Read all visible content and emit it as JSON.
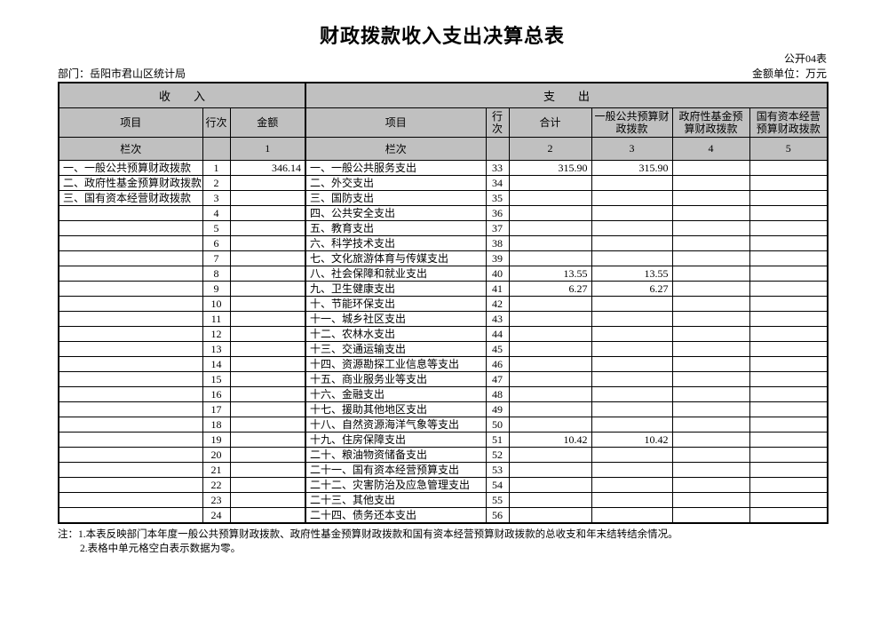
{
  "page": {
    "title": "财政拨款收入支出决算总表",
    "table_code": "公开04表",
    "department": "部门：岳阳市君山区统计局",
    "unit": "金额单位：万元"
  },
  "table": {
    "sections": {
      "income": "收　　入",
      "expense": "支　　出"
    },
    "columns": [
      "项目",
      "行次",
      "金额",
      "项目",
      "行次",
      "合计",
      "一般公共预算财政拨款",
      "政府性基金预算财政拨款",
      "国有资本经营预算财政拨款"
    ],
    "lanci": [
      "栏次",
      "",
      "1",
      "栏次",
      "",
      "2",
      "3",
      "4",
      "5"
    ],
    "rows": [
      [
        "一、一般公共预算财政拨款",
        "1",
        "346.14",
        "一、一般公共服务支出",
        "33",
        "315.90",
        "315.90",
        "",
        ""
      ],
      [
        "二、政府性基金预算财政拨款",
        "2",
        "",
        "二、外交支出",
        "34",
        "",
        "",
        "",
        ""
      ],
      [
        "三、国有资本经营财政拨款",
        "3",
        "",
        "三、国防支出",
        "35",
        "",
        "",
        "",
        ""
      ],
      [
        "",
        "4",
        "",
        "四、公共安全支出",
        "36",
        "",
        "",
        "",
        ""
      ],
      [
        "",
        "5",
        "",
        "五、教育支出",
        "37",
        "",
        "",
        "",
        ""
      ],
      [
        "",
        "6",
        "",
        "六、科学技术支出",
        "38",
        "",
        "",
        "",
        ""
      ],
      [
        "",
        "7",
        "",
        "七、文化旅游体育与传媒支出",
        "39",
        "",
        "",
        "",
        ""
      ],
      [
        "",
        "8",
        "",
        "八、社会保障和就业支出",
        "40",
        "13.55",
        "13.55",
        "",
        ""
      ],
      [
        "",
        "9",
        "",
        "九、卫生健康支出",
        "41",
        "6.27",
        "6.27",
        "",
        ""
      ],
      [
        "",
        "10",
        "",
        "十、节能环保支出",
        "42",
        "",
        "",
        "",
        ""
      ],
      [
        "",
        "11",
        "",
        "十一、城乡社区支出",
        "43",
        "",
        "",
        "",
        ""
      ],
      [
        "",
        "12",
        "",
        "十二、农林水支出",
        "44",
        "",
        "",
        "",
        ""
      ],
      [
        "",
        "13",
        "",
        "十三、交通运输支出",
        "45",
        "",
        "",
        "",
        ""
      ],
      [
        "",
        "14",
        "",
        "十四、资源勘探工业信息等支出",
        "46",
        "",
        "",
        "",
        ""
      ],
      [
        "",
        "15",
        "",
        "十五、商业服务业等支出",
        "47",
        "",
        "",
        "",
        ""
      ],
      [
        "",
        "16",
        "",
        "十六、金融支出",
        "48",
        "",
        "",
        "",
        ""
      ],
      [
        "",
        "17",
        "",
        "十七、援助其他地区支出",
        "49",
        "",
        "",
        "",
        ""
      ],
      [
        "",
        "18",
        "",
        "十八、自然资源海洋气象等支出",
        "50",
        "",
        "",
        "",
        ""
      ],
      [
        "",
        "19",
        "",
        "十九、住房保障支出",
        "51",
        "10.42",
        "10.42",
        "",
        ""
      ],
      [
        "",
        "20",
        "",
        "二十、粮油物资储备支出",
        "52",
        "",
        "",
        "",
        ""
      ],
      [
        "",
        "21",
        "",
        "二十一、国有资本经营预算支出",
        "53",
        "",
        "",
        "",
        ""
      ],
      [
        "",
        "22",
        "",
        "二十二、灾害防治及应急管理支出",
        "54",
        "",
        "",
        "",
        ""
      ],
      [
        "",
        "23",
        "",
        "二十三、其他支出",
        "55",
        "",
        "",
        "",
        ""
      ],
      [
        "",
        "24",
        "",
        "二十四、债务还本支出",
        "56",
        "",
        "",
        "",
        ""
      ]
    ]
  },
  "notes": [
    "注：1.本表反映部门本年度一般公共预算财政拨款、政府性基金预算财政拨款和国有资本经营预算财政拨款的总收支和年末结转结余情况。",
    "2.表格中单元格空白表示数据为零。"
  ]
}
